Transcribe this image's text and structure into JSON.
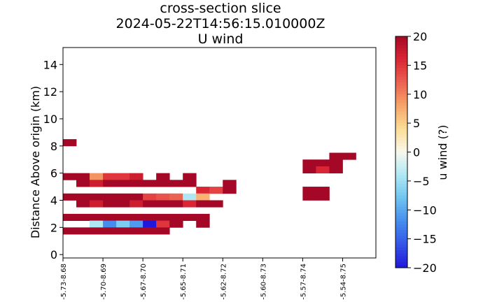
{
  "chart_data": {
    "type": "heatmap",
    "title_lines": [
      "cross-section slice",
      "2024-05-22T14:56:15.010000Z",
      "U wind"
    ],
    "xlabel": "",
    "ylabel": "Distance Above origin (km)",
    "ylim": [
      -0.25,
      15.25
    ],
    "y_ticks": [
      0,
      2,
      4,
      6,
      8,
      10,
      12,
      14
    ],
    "x_tick_labels": [
      "-5.73-8.68",
      "-5.70-8.69",
      "-5.67-8.70",
      "-5.65-8.71",
      "-5.62-8.72",
      "-5.60-8.73",
      "-5.57-8.74",
      "-5.54-8.75"
    ],
    "x_range": [
      0,
      23.5
    ],
    "x_tick_positions": [
      0,
      3,
      6,
      9,
      12,
      15,
      18,
      21
    ],
    "cell_height_km": 0.5,
    "colorbar": {
      "label": "u wind (?)",
      "vmin": -20,
      "vmax": 20,
      "ticks": [
        20,
        15,
        10,
        5,
        0,
        -5,
        -10,
        -15,
        -20
      ],
      "colormap": "RdYlBu_r"
    },
    "grid": false,
    "cells": [
      {
        "x": 0,
        "y": 8,
        "v": 20
      },
      {
        "x": 0,
        "y": 5.5,
        "v": 20
      },
      {
        "x": 1,
        "y": 5.5,
        "v": 20
      },
      {
        "x": 2,
        "y": 5.5,
        "v": 9
      },
      {
        "x": 3,
        "y": 5.5,
        "v": 15
      },
      {
        "x": 4,
        "y": 5.5,
        "v": 15
      },
      {
        "x": 5,
        "y": 5.5,
        "v": 17
      },
      {
        "x": 7,
        "y": 5.5,
        "v": 20
      },
      {
        "x": 9,
        "y": 5.5,
        "v": 20
      },
      {
        "x": 1,
        "y": 5,
        "v": 20
      },
      {
        "x": 2,
        "y": 5,
        "v": 17
      },
      {
        "x": 3,
        "y": 5,
        "v": 20
      },
      {
        "x": 4,
        "y": 5,
        "v": 20
      },
      {
        "x": 5,
        "y": 5,
        "v": 20
      },
      {
        "x": 6,
        "y": 5,
        "v": 20
      },
      {
        "x": 7,
        "y": 5,
        "v": 20
      },
      {
        "x": 8,
        "y": 5,
        "v": 20
      },
      {
        "x": 9,
        "y": 5,
        "v": 20
      },
      {
        "x": 12,
        "y": 5,
        "v": 20
      },
      {
        "x": 10,
        "y": 4.5,
        "v": 16
      },
      {
        "x": 11,
        "y": 4.5,
        "v": 14
      },
      {
        "x": 12,
        "y": 4.5,
        "v": 20
      },
      {
        "x": 0,
        "y": 4,
        "v": 20
      },
      {
        "x": 1,
        "y": 4,
        "v": 20
      },
      {
        "x": 2,
        "y": 4,
        "v": 20
      },
      {
        "x": 3,
        "y": 4,
        "v": 20
      },
      {
        "x": 4,
        "y": 4,
        "v": 20
      },
      {
        "x": 5,
        "y": 4,
        "v": 20
      },
      {
        "x": 6,
        "y": 4,
        "v": 14
      },
      {
        "x": 7,
        "y": 4,
        "v": 13
      },
      {
        "x": 8,
        "y": 4,
        "v": 12
      },
      {
        "x": 9,
        "y": 4,
        "v": -4
      },
      {
        "x": 10,
        "y": 4,
        "v": 7
      },
      {
        "x": 1,
        "y": 3.5,
        "v": 20
      },
      {
        "x": 2,
        "y": 3.5,
        "v": 17
      },
      {
        "x": 3,
        "y": 3.5,
        "v": 20
      },
      {
        "x": 4,
        "y": 3.5,
        "v": 20
      },
      {
        "x": 5,
        "y": 3.5,
        "v": 17
      },
      {
        "x": 6,
        "y": 3.5,
        "v": 20
      },
      {
        "x": 7,
        "y": 3.5,
        "v": 20
      },
      {
        "x": 8,
        "y": 3.5,
        "v": 20
      },
      {
        "x": 9,
        "y": 3.5,
        "v": 16
      },
      {
        "x": 10,
        "y": 3.5,
        "v": 20
      },
      {
        "x": 11,
        "y": 3.5,
        "v": 20
      },
      {
        "x": 0,
        "y": 2.5,
        "v": 20
      },
      {
        "x": 1,
        "y": 2.5,
        "v": 20
      },
      {
        "x": 2,
        "y": 2.5,
        "v": 20
      },
      {
        "x": 3,
        "y": 2.5,
        "v": 20
      },
      {
        "x": 4,
        "y": 2.5,
        "v": 20
      },
      {
        "x": 5,
        "y": 2.5,
        "v": 20
      },
      {
        "x": 6,
        "y": 2.5,
        "v": 20
      },
      {
        "x": 7,
        "y": 2.5,
        "v": 20
      },
      {
        "x": 8,
        "y": 2.5,
        "v": 20
      },
      {
        "x": 9,
        "y": 2.5,
        "v": 20
      },
      {
        "x": 10,
        "y": 2.5,
        "v": 20
      },
      {
        "x": 2,
        "y": 2,
        "v": -4
      },
      {
        "x": 3,
        "y": 2,
        "v": -12
      },
      {
        "x": 4,
        "y": 2,
        "v": -7
      },
      {
        "x": 5,
        "y": 2,
        "v": -11
      },
      {
        "x": 6,
        "y": 2,
        "v": -20
      },
      {
        "x": 7,
        "y": 2,
        "v": 15
      },
      {
        "x": 8,
        "y": 2,
        "v": 20
      },
      {
        "x": 10,
        "y": 2,
        "v": 20
      },
      {
        "x": 0,
        "y": 1.5,
        "v": 20
      },
      {
        "x": 1,
        "y": 1.5,
        "v": 20
      },
      {
        "x": 2,
        "y": 1.5,
        "v": 20
      },
      {
        "x": 3,
        "y": 1.5,
        "v": 20
      },
      {
        "x": 4,
        "y": 1.5,
        "v": 20
      },
      {
        "x": 5,
        "y": 1.5,
        "v": 20
      },
      {
        "x": 6,
        "y": 1.5,
        "v": 20
      },
      {
        "x": 7,
        "y": 1.5,
        "v": 20
      },
      {
        "x": 20,
        "y": 7,
        "v": 20
      },
      {
        "x": 21,
        "y": 7,
        "v": 20
      },
      {
        "x": 18,
        "y": 6.5,
        "v": 20
      },
      {
        "x": 19,
        "y": 6.5,
        "v": 20
      },
      {
        "x": 20,
        "y": 6.5,
        "v": 20
      },
      {
        "x": 18,
        "y": 6,
        "v": 20
      },
      {
        "x": 19,
        "y": 6,
        "v": 16
      },
      {
        "x": 20,
        "y": 6,
        "v": 20
      },
      {
        "x": 18,
        "y": 4.5,
        "v": 20
      },
      {
        "x": 19,
        "y": 4.5,
        "v": 20
      },
      {
        "x": 18,
        "y": 4,
        "v": 20
      },
      {
        "x": 19,
        "y": 4,
        "v": 20
      }
    ]
  }
}
